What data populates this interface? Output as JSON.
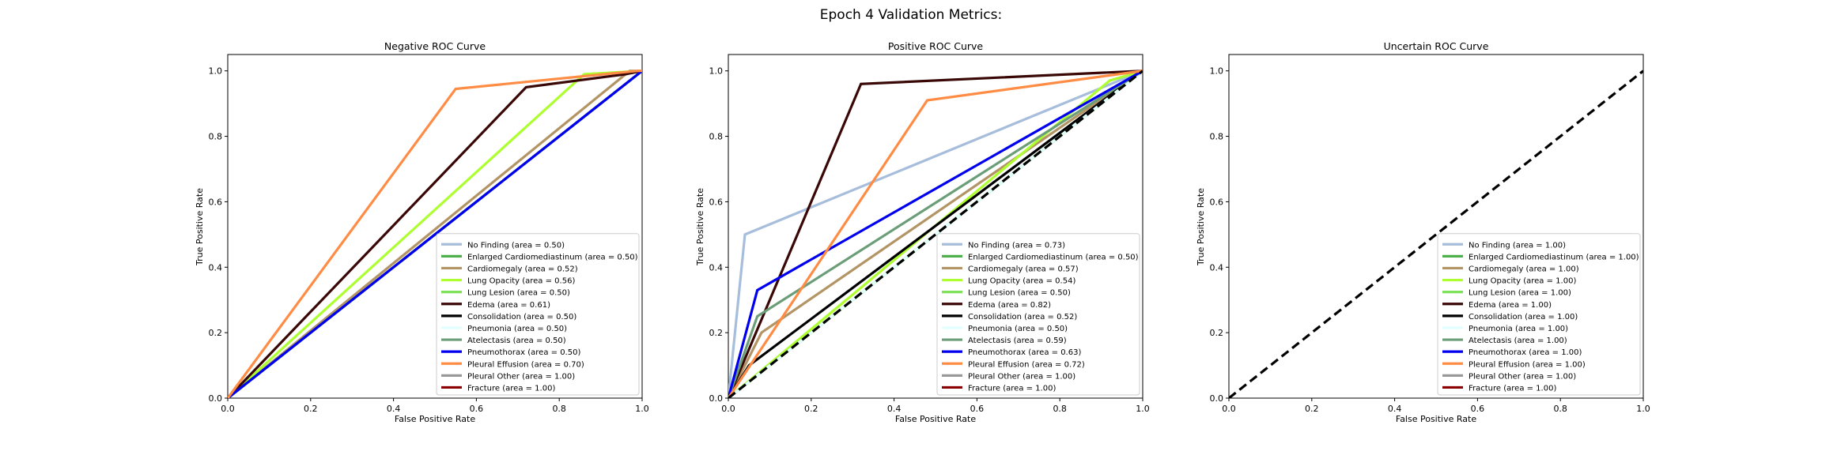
{
  "figure": {
    "title": "Epoch 4 Validation Metrics:"
  },
  "colors": {
    "No Finding": "#a6bddb",
    "Enlarged Cardiomediastinum": "#4daf4a",
    "Cardiomegaly": "#b39464",
    "Lung Opacity": "#adff2f",
    "Lung Lesion": "#7fe05a",
    "Edema": "#3a0707",
    "Consolidation": "#000000",
    "Pneumonia": "#e0ffff",
    "Atelectasis": "#6b9e78",
    "Pneumothorax": "#0000ee",
    "Pleural Effusion": "#ff8c45",
    "Pleural Other": "#999999",
    "Fracture": "#8b0000",
    "chance_line": "#000000"
  },
  "chart_data": [
    {
      "type": "line",
      "title": "Negative ROC Curve",
      "xlabel": "False Positive Rate",
      "ylabel": "True Positive Rate",
      "xlim": [
        0,
        1
      ],
      "ylim": [
        0,
        1.05
      ],
      "xticks": [
        "0.0",
        "0.2",
        "0.4",
        "0.6",
        "0.8",
        "1.0"
      ],
      "yticks": [
        "0.0",
        "0.2",
        "0.4",
        "0.6",
        "0.8",
        "1.0"
      ],
      "legend_position": "lower-right",
      "chance_line": false,
      "series": [
        {
          "name": "No Finding",
          "legend": "No Finding (area = 0.50)",
          "x": [
            0,
            1
          ],
          "y": [
            0,
            1
          ]
        },
        {
          "name": "Enlarged Cardiomediastinum",
          "legend": "Enlarged Cardiomediastinum (area = 0.50)",
          "x": [
            0,
            1
          ],
          "y": [
            0,
            1
          ]
        },
        {
          "name": "Cardiomegaly",
          "legend": "Cardiomegaly (area = 0.52)",
          "x": [
            0,
            0.97,
            1
          ],
          "y": [
            0,
            1,
            1
          ]
        },
        {
          "name": "Lung Opacity",
          "legend": "Lung Opacity (area = 0.56)",
          "x": [
            0,
            0.86,
            1
          ],
          "y": [
            0,
            0.99,
            1
          ]
        },
        {
          "name": "Lung Lesion",
          "legend": "Lung Lesion (area = 0.50)",
          "x": [
            0,
            1
          ],
          "y": [
            0,
            1
          ]
        },
        {
          "name": "Edema",
          "legend": "Edema (area = 0.61)",
          "x": [
            0,
            0.72,
            0.96,
            1
          ],
          "y": [
            0,
            0.95,
            0.99,
            1
          ]
        },
        {
          "name": "Consolidation",
          "legend": "Consolidation (area = 0.50)",
          "x": [
            0,
            1
          ],
          "y": [
            0,
            1
          ]
        },
        {
          "name": "Pneumonia",
          "legend": "Pneumonia (area = 0.50)",
          "x": [
            0,
            1
          ],
          "y": [
            0,
            1
          ]
        },
        {
          "name": "Atelectasis",
          "legend": "Atelectasis (area = 0.50)",
          "x": [
            0,
            1
          ],
          "y": [
            0,
            1
          ]
        },
        {
          "name": "Pneumothorax",
          "legend": "Pneumothorax (area = 0.50)",
          "x": [
            0,
            1
          ],
          "y": [
            0,
            1
          ]
        },
        {
          "name": "Pleural Effusion",
          "legend": "Pleural Effusion (area = 0.70)",
          "x": [
            0,
            0.55,
            0.99,
            1
          ],
          "y": [
            0,
            0.945,
            1,
            1
          ]
        },
        {
          "name": "Pleural Other",
          "legend": "Pleural Other (area = 1.00)",
          "x": [],
          "y": []
        },
        {
          "name": "Fracture",
          "legend": "Fracture (area = 1.00)",
          "x": [],
          "y": []
        }
      ]
    },
    {
      "type": "line",
      "title": "Positive ROC Curve",
      "xlabel": "False Positive Rate",
      "ylabel": "True Positive Rate",
      "xlim": [
        0,
        1
      ],
      "ylim": [
        0,
        1.05
      ],
      "xticks": [
        "0.0",
        "0.2",
        "0.4",
        "0.6",
        "0.8",
        "1.0"
      ],
      "yticks": [
        "0.0",
        "0.2",
        "0.4",
        "0.6",
        "0.8",
        "1.0"
      ],
      "legend_position": "lower-right",
      "chance_line": true,
      "series": [
        {
          "name": "No Finding",
          "legend": "No Finding (area = 0.73)",
          "x": [
            0,
            0.04,
            1
          ],
          "y": [
            0,
            0.5,
            1
          ]
        },
        {
          "name": "Enlarged Cardiomediastinum",
          "legend": "Enlarged Cardiomediastinum (area = 0.50)",
          "x": [
            0,
            1
          ],
          "y": [
            0,
            1
          ]
        },
        {
          "name": "Cardiomegaly",
          "legend": "Cardiomegaly (area = 0.57)",
          "x": [
            0,
            0.08,
            1
          ],
          "y": [
            0,
            0.2,
            1
          ]
        },
        {
          "name": "Lung Opacity",
          "legend": "Lung Opacity (area = 0.54)",
          "x": [
            0,
            0.92,
            1
          ],
          "y": [
            0,
            0.97,
            1
          ]
        },
        {
          "name": "Lung Lesion",
          "legend": "Lung Lesion (area = 0.50)",
          "x": [
            0,
            1
          ],
          "y": [
            0,
            1
          ]
        },
        {
          "name": "Edema",
          "legend": "Edema (area = 0.82)",
          "x": [
            0,
            0.32,
            1
          ],
          "y": [
            0,
            0.96,
            1
          ]
        },
        {
          "name": "Consolidation",
          "legend": "Consolidation (area = 0.52)",
          "x": [
            0,
            0.05,
            1
          ],
          "y": [
            0,
            0.1,
            1
          ]
        },
        {
          "name": "Pneumonia",
          "legend": "Pneumonia (area = 0.50)",
          "x": [
            0,
            1
          ],
          "y": [
            0,
            1
          ]
        },
        {
          "name": "Atelectasis",
          "legend": "Atelectasis (area = 0.59)",
          "x": [
            0,
            0.07,
            1
          ],
          "y": [
            0,
            0.25,
            1
          ]
        },
        {
          "name": "Pneumothorax",
          "legend": "Pneumothorax (area = 0.63)",
          "x": [
            0,
            0.07,
            1
          ],
          "y": [
            0,
            0.33,
            1
          ]
        },
        {
          "name": "Pleural Effusion",
          "legend": "Pleural Effusion (area = 0.72)",
          "x": [
            0,
            0.48,
            1
          ],
          "y": [
            0,
            0.91,
            1
          ]
        },
        {
          "name": "Pleural Other",
          "legend": "Pleural Other (area = 1.00)",
          "x": [],
          "y": []
        },
        {
          "name": "Fracture",
          "legend": "Fracture (area = 1.00)",
          "x": [],
          "y": []
        }
      ]
    },
    {
      "type": "line",
      "title": "Uncertain ROC Curve",
      "xlabel": "False Positive Rate",
      "ylabel": "True Positive Rate",
      "xlim": [
        0,
        1
      ],
      "ylim": [
        0,
        1.05
      ],
      "xticks": [
        "0.0",
        "0.2",
        "0.4",
        "0.6",
        "0.8",
        "1.0"
      ],
      "yticks": [
        "0.0",
        "0.2",
        "0.4",
        "0.6",
        "0.8",
        "1.0"
      ],
      "legend_position": "lower-right",
      "chance_line": true,
      "series": [
        {
          "name": "No Finding",
          "legend": "No Finding (area = 1.00)",
          "x": [],
          "y": []
        },
        {
          "name": "Enlarged Cardiomediastinum",
          "legend": "Enlarged Cardiomediastinum (area = 1.00)",
          "x": [],
          "y": []
        },
        {
          "name": "Cardiomegaly",
          "legend": "Cardiomegaly (area = 1.00)",
          "x": [],
          "y": []
        },
        {
          "name": "Lung Opacity",
          "legend": "Lung Opacity (area = 1.00)",
          "x": [],
          "y": []
        },
        {
          "name": "Lung Lesion",
          "legend": "Lung Lesion (area = 1.00)",
          "x": [],
          "y": []
        },
        {
          "name": "Edema",
          "legend": "Edema (area = 1.00)",
          "x": [],
          "y": []
        },
        {
          "name": "Consolidation",
          "legend": "Consolidation (area = 1.00)",
          "x": [],
          "y": []
        },
        {
          "name": "Pneumonia",
          "legend": "Pneumonia (area = 1.00)",
          "x": [],
          "y": []
        },
        {
          "name": "Atelectasis",
          "legend": "Atelectasis (area = 1.00)",
          "x": [],
          "y": []
        },
        {
          "name": "Pneumothorax",
          "legend": "Pneumothorax (area = 1.00)",
          "x": [],
          "y": []
        },
        {
          "name": "Pleural Effusion",
          "legend": "Pleural Effusion (area = 1.00)",
          "x": [],
          "y": []
        },
        {
          "name": "Pleural Other",
          "legend": "Pleural Other (area = 1.00)",
          "x": [],
          "y": []
        },
        {
          "name": "Fracture",
          "legend": "Fracture (area = 1.00)",
          "x": [],
          "y": []
        }
      ]
    }
  ]
}
